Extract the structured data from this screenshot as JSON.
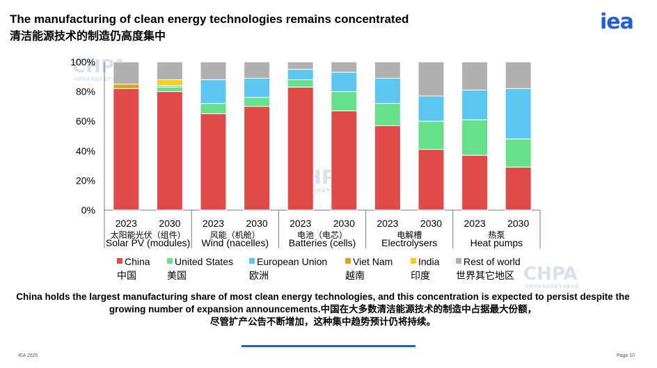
{
  "header": {
    "title_en": "The manufacturing of clean energy technologies remains concentrated",
    "title_zh": "清洁能源技术的制造仍高度集中",
    "logo": "iea"
  },
  "colors": {
    "China": "#e04a48",
    "United States": "#66e08a",
    "European Union": "#5bc6f2",
    "Viet Nam": "#e0a21a",
    "India": "#f4cf16",
    "Rest of world": "#b0b0b0",
    "brand": "#1e5fd6"
  },
  "chart_data": {
    "type": "bar",
    "stacked": true,
    "ylim": [
      0,
      100
    ],
    "yticks": [
      "0%",
      "20%",
      "40%",
      "60%",
      "80%",
      "100%"
    ],
    "groups": [
      {
        "label": "Solar PV (modules)",
        "label_zh": "太阳能光伏（组件）",
        "years": [
          "2023",
          "2030"
        ]
      },
      {
        "label": "Wind (nacelles)",
        "label_zh": "风能（机舱）",
        "years": [
          "2023",
          "2030"
        ]
      },
      {
        "label": "Batteries (cells)",
        "label_zh": "电池（电芯）",
        "years": [
          "2023",
          "2030"
        ]
      },
      {
        "label": "Electrolysers",
        "label_zh": "电解槽",
        "years": [
          "2023",
          "2030"
        ]
      },
      {
        "label": "Heat pumps",
        "label_zh": "热泵",
        "years": [
          "2023",
          "2030"
        ]
      }
    ],
    "categories": [
      "2023",
      "2030",
      "2023",
      "2030",
      "2023",
      "2030",
      "2023",
      "2030",
      "2023",
      "2030"
    ],
    "series": [
      {
        "name": "China",
        "name_zh": "中国",
        "values": [
          82,
          80,
          65,
          70,
          83,
          67,
          57,
          41,
          37,
          29
        ]
      },
      {
        "name": "United States",
        "name_zh": "美国",
        "values": [
          0,
          3,
          7,
          6,
          5,
          13,
          15,
          19,
          24,
          19
        ]
      },
      {
        "name": "European Union",
        "name_zh": "欧洲",
        "values": [
          0,
          1,
          16,
          13,
          7,
          13,
          17,
          17,
          20,
          34
        ]
      },
      {
        "name": "Viet Nam",
        "name_zh": "越南",
        "values": [
          3,
          0,
          0,
          0,
          0,
          0,
          0,
          0,
          0,
          0
        ]
      },
      {
        "name": "India",
        "name_zh": "印度",
        "values": [
          0,
          4,
          0,
          0,
          0,
          0,
          0,
          0,
          0,
          0
        ]
      },
      {
        "name": "Rest of world",
        "name_zh": "世界其它地区",
        "values": [
          15,
          12,
          12,
          11,
          5,
          7,
          11,
          23,
          19,
          18
        ]
      }
    ]
  },
  "watermark": {
    "text": "CHPA",
    "subtext": "中国节能协会热泵专业委员会"
  },
  "caption": {
    "en": "China holds the largest manufacturing share of most clean energy technologies, and this concentration is expected to persist despite the growing number of expansion announcements.",
    "zh_part1": "中国在大多数清洁能源技术的制造中占据最大份额，",
    "zh_part2": "尽管扩产公告不断增加，这种集中趋势预计仍将持续。"
  },
  "footer": {
    "left": "IEA 2025",
    "right": "Page 10"
  }
}
